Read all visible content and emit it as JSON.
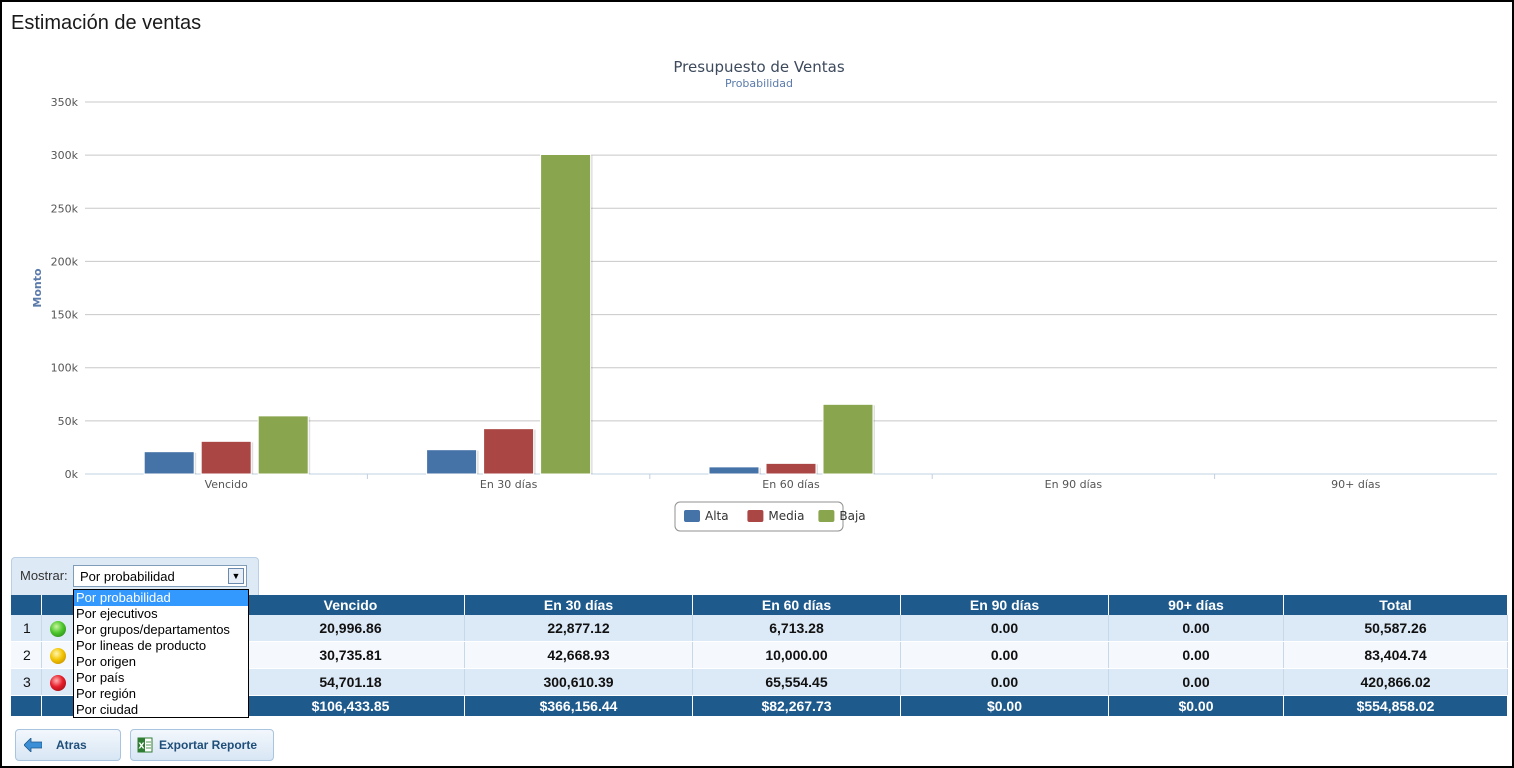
{
  "page": {
    "title": "Estimación de ventas"
  },
  "chart_data": {
    "type": "bar",
    "title": "Presupuesto de Ventas",
    "subtitle": "Probabilidad",
    "xlabel": "",
    "ylabel": "Monto",
    "categories": [
      "Vencido",
      "En 30 días",
      "En 60 días",
      "En 90 días",
      "90+ días"
    ],
    "series": [
      {
        "name": "Alta",
        "color": "#4572a7",
        "values": [
          20996.86,
          22877.12,
          6713.28,
          0,
          0
        ]
      },
      {
        "name": "Media",
        "color": "#aa4643",
        "values": [
          30735.81,
          42668.93,
          10000.0,
          0,
          0
        ]
      },
      {
        "name": "Baja",
        "color": "#89a54e",
        "values": [
          54701.18,
          300610.39,
          65554.45,
          0,
          0
        ]
      }
    ],
    "ylim": [
      0,
      350000
    ],
    "yticks": [
      0,
      50000,
      100000,
      150000,
      200000,
      250000,
      300000,
      350000
    ],
    "ytick_labels": [
      "0k",
      "50k",
      "100k",
      "150k",
      "200k",
      "250k",
      "300k",
      "350k"
    ],
    "grid": true,
    "legend": "bottom-center"
  },
  "filter": {
    "label": "Mostrar:",
    "selected": "Por probabilidad",
    "options": [
      "Por probabilidad",
      "Por ejecutivos",
      "Por grupos/departamentos",
      "Por lineas de producto",
      "Por origen",
      "Por país",
      "Por región",
      "Por ciudad"
    ]
  },
  "table": {
    "headers": [
      "Vencido",
      "En 30 días",
      "En 60 días",
      "En 90 días",
      "90+ días",
      "Total"
    ],
    "rows": [
      {
        "index": "1",
        "status": "green",
        "cells": [
          "20,996.86",
          "22,877.12",
          "6,713.28",
          "0.00",
          "0.00",
          "50,587.26"
        ]
      },
      {
        "index": "2",
        "status": "yellow",
        "cells": [
          "30,735.81",
          "42,668.93",
          "10,000.00",
          "0.00",
          "0.00",
          "83,404.74"
        ]
      },
      {
        "index": "3",
        "status": "red",
        "cells": [
          "54,701.18",
          "300,610.39",
          "65,554.45",
          "0.00",
          "0.00",
          "420,866.02"
        ]
      }
    ],
    "totals": [
      "$106,433.85",
      "$366,156.44",
      "$82,267.73",
      "$0.00",
      "$0.00",
      "$554,858.02"
    ]
  },
  "buttons": {
    "back": "Atras",
    "export": "Exportar Reporte"
  },
  "icons": {
    "back": "back-arrow-icon",
    "export": "excel-icon"
  }
}
